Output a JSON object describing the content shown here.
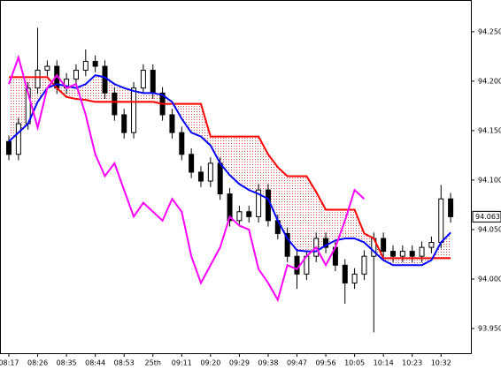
{
  "chart_data": {
    "type": "candlestick",
    "categories": [
      "08:17",
      null,
      null,
      "08:26",
      null,
      null,
      "08:35",
      null,
      null,
      "08:44",
      null,
      null,
      "08:53",
      null,
      null,
      "25th",
      null,
      null,
      "09:11",
      null,
      null,
      "09:20",
      null,
      null,
      "09:29",
      null,
      null,
      "09:38",
      null,
      null,
      "09:47",
      null,
      null,
      "09:56",
      null,
      null,
      "10:05",
      null,
      null,
      "10:14",
      null,
      null,
      "10:23",
      null,
      null,
      "10:32",
      null
    ],
    "open": [
      94.139,
      94.126,
      94.157,
      94.193,
      94.211,
      94.215,
      94.193,
      94.202,
      94.211,
      94.22,
      94.215,
      94.188,
      94.166,
      94.148,
      94.193,
      94.211,
      94.188,
      94.166,
      94.148,
      94.126,
      94.108,
      94.099,
      94.117,
      94.086,
      94.059,
      94.068,
      94.063,
      94.09,
      94.059,
      94.046,
      94.023,
      94.005,
      94.023,
      94.041,
      94.032,
      94.014,
      93.996,
      94.005,
      94.023,
      94.041,
      94.028,
      94.023,
      94.028,
      94.023,
      94.032,
      94.037,
      94.081
    ],
    "high": [
      94.145,
      94.163,
      94.199,
      94.254,
      94.221,
      94.221,
      94.208,
      94.217,
      94.232,
      94.226,
      94.221,
      94.194,
      94.172,
      94.199,
      94.217,
      94.217,
      94.194,
      94.172,
      94.154,
      94.132,
      94.114,
      94.123,
      94.123,
      94.092,
      94.074,
      94.074,
      94.096,
      94.096,
      94.065,
      94.052,
      94.029,
      94.029,
      94.047,
      94.047,
      94.038,
      94.02,
      94.011,
      94.029,
      94.047,
      94.047,
      94.034,
      94.034,
      94.034,
      94.038,
      94.043,
      94.095,
      94.087
    ],
    "low": [
      94.12,
      94.12,
      94.151,
      94.187,
      94.205,
      94.187,
      94.187,
      94.196,
      94.205,
      94.209,
      94.182,
      94.16,
      94.142,
      94.142,
      94.187,
      94.182,
      94.16,
      94.142,
      94.12,
      94.102,
      94.093,
      94.093,
      94.08,
      94.053,
      94.053,
      94.057,
      94.057,
      94.053,
      94.04,
      94.017,
      93.99,
      93.999,
      94.017,
      94.026,
      94.008,
      93.975,
      93.99,
      93.999,
      93.946,
      94.022,
      94.017,
      94.017,
      94.017,
      94.017,
      94.026,
      94.031,
      94.057
    ],
    "close": [
      94.126,
      94.157,
      94.193,
      94.211,
      94.215,
      94.193,
      94.202,
      94.211,
      94.22,
      94.215,
      94.188,
      94.166,
      94.148,
      94.193,
      94.211,
      94.188,
      94.166,
      94.148,
      94.126,
      94.108,
      94.099,
      94.117,
      94.086,
      94.059,
      94.068,
      94.063,
      94.09,
      94.059,
      94.046,
      94.023,
      94.005,
      94.023,
      94.041,
      94.032,
      94.014,
      93.996,
      94.005,
      94.023,
      94.041,
      94.028,
      94.023,
      94.028,
      94.023,
      94.032,
      94.037,
      94.081,
      94.063
    ],
    "up_color": "#ffffff",
    "down_color": "#000000",
    "lines": [
      {
        "color": "#ff0000",
        "values": [
          94.204,
          94.204,
          94.204,
          94.204,
          94.204,
          94.193,
          94.184,
          94.182,
          94.181,
          94.179,
          94.179,
          94.179,
          94.179,
          94.179,
          94.179,
          94.179,
          94.177,
          94.177,
          94.177,
          94.177,
          94.177,
          94.144,
          94.144,
          94.144,
          94.144,
          94.144,
          94.144,
          94.126,
          94.113,
          94.104,
          94.104,
          94.104,
          94.088,
          94.07,
          94.07,
          94.07,
          94.07,
          94.046,
          94.041,
          94.021,
          94.021,
          94.021,
          94.021,
          94.021,
          94.021,
          94.021,
          94.021
        ]
      },
      {
        "color": "#0000ff",
        "values": [
          94.139,
          94.148,
          94.157,
          94.179,
          94.193,
          94.197,
          94.195,
          94.193,
          94.197,
          94.206,
          94.204,
          94.197,
          94.193,
          94.19,
          94.188,
          94.188,
          94.186,
          94.179,
          94.162,
          94.148,
          94.144,
          94.135,
          94.117,
          94.105,
          94.096,
          94.09,
          94.086,
          94.081,
          94.059,
          94.041,
          94.029,
          94.028,
          94.028,
          94.034,
          94.039,
          94.041,
          94.041,
          94.037,
          94.028,
          94.019,
          94.014,
          94.014,
          94.014,
          94.014,
          94.019,
          94.037,
          94.047
        ]
      },
      {
        "color": "#ff00ff",
        "values": [
          94.197,
          94.224,
          94.188,
          94.153,
          94.193,
          94.206,
          94.193,
          94.197,
          94.166,
          94.126,
          94.104,
          94.117,
          94.09,
          94.063,
          94.077,
          94.068,
          94.059,
          94.081,
          94.068,
          94.023,
          93.996,
          94.014,
          94.032,
          94.063,
          94.054,
          94.05,
          94.01,
          93.996,
          93.979,
          94.014,
          94.01,
          94.023,
          94.032,
          94.014,
          94.032,
          94.059,
          94.09,
          94.081,
          null,
          null,
          null,
          null,
          null,
          null,
          null,
          null,
          null
        ]
      }
    ],
    "cloud_color": "#e05050",
    "last_price": 94.063,
    "ylim": [
      93.925,
      94.282
    ],
    "yticks": [
      {
        "value": 93.95,
        "label": "93.950"
      },
      {
        "value": 94.0,
        "label": "94.000"
      },
      {
        "value": 94.05,
        "label": "94.050"
      },
      {
        "value": 94.1,
        "label": "94.100"
      },
      {
        "value": 94.15,
        "label": "94.150"
      },
      {
        "value": 94.2,
        "label": "94.200"
      },
      {
        "value": 94.25,
        "label": "94.250"
      }
    ]
  }
}
